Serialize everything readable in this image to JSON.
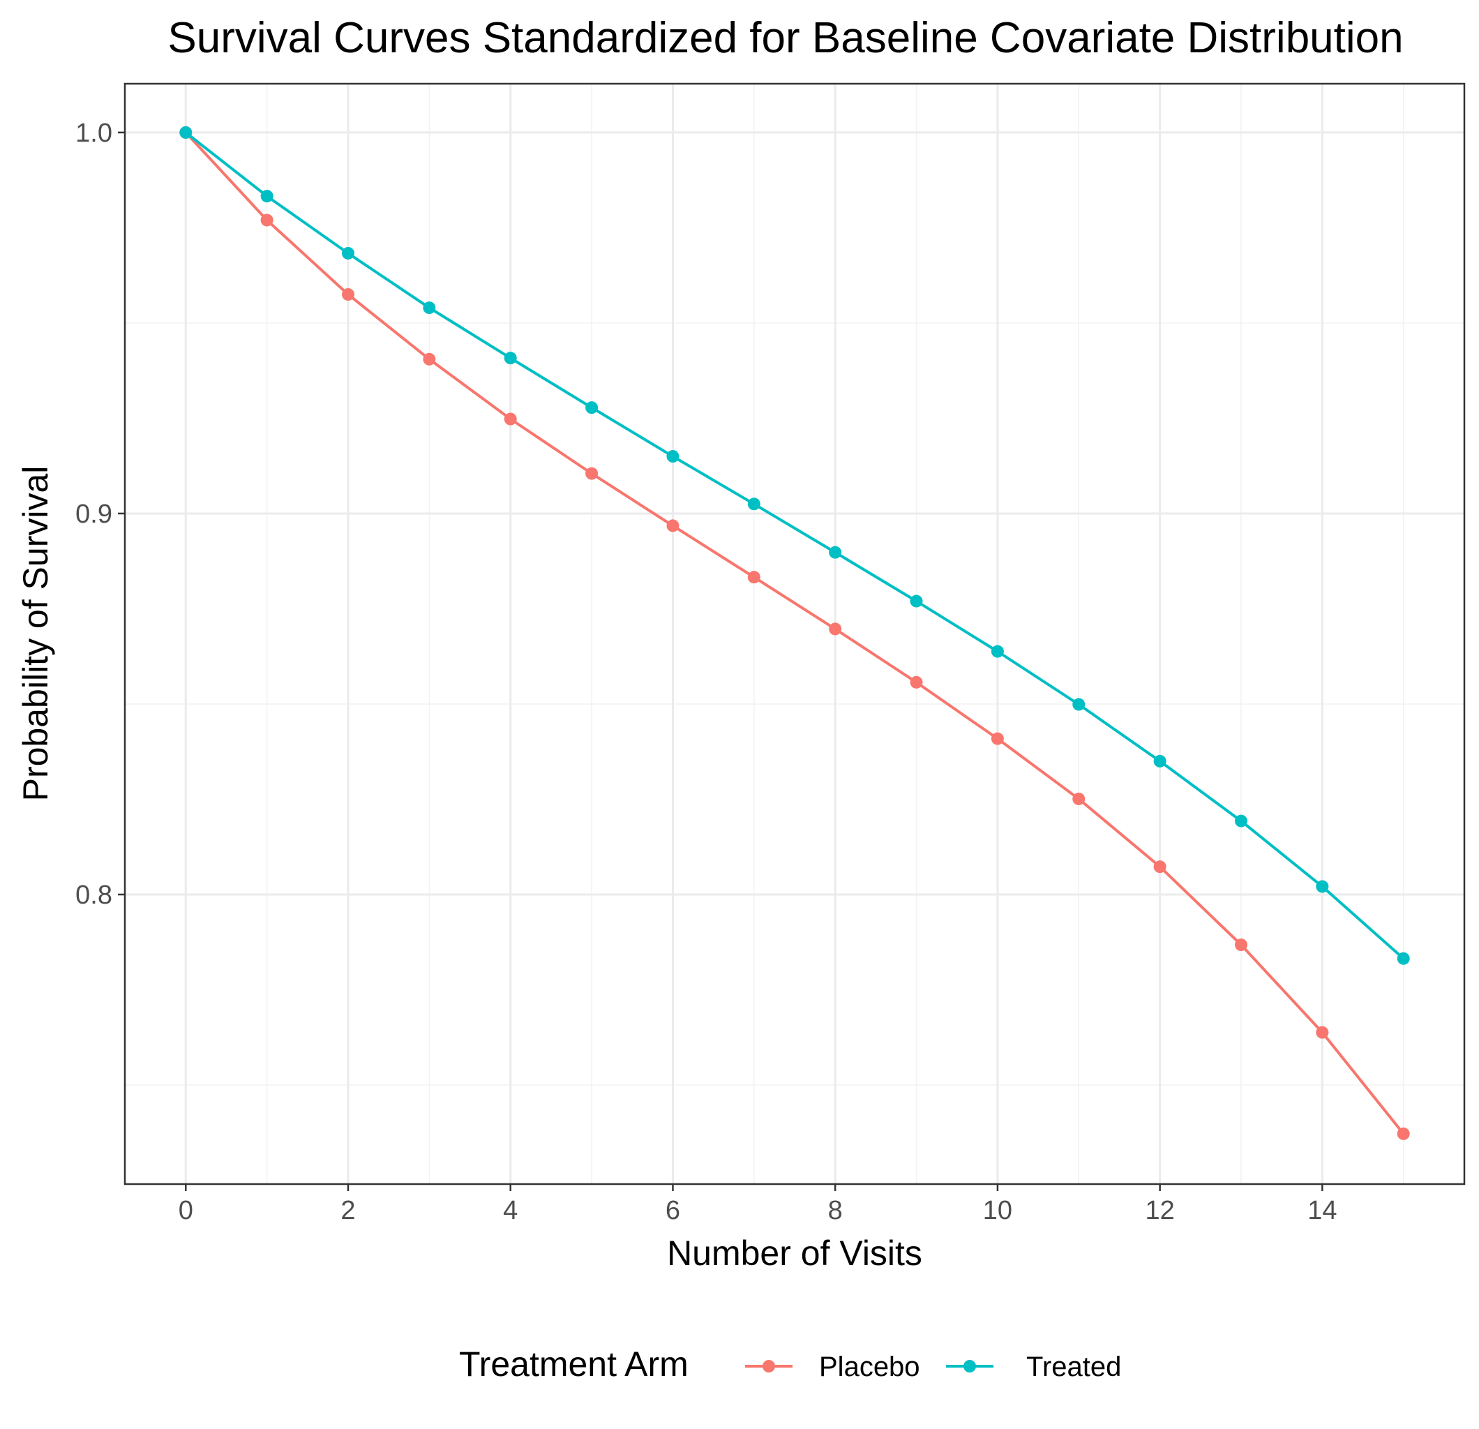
{
  "chart_data": {
    "type": "line",
    "title": "Survival Curves Standardized for Baseline Covariate Distribution",
    "xlabel": "Number of Visits",
    "ylabel": "Probability of Survival",
    "x": [
      0,
      1,
      2,
      3,
      4,
      5,
      6,
      7,
      8,
      9,
      10,
      11,
      12,
      13,
      14,
      15
    ],
    "xlim": [
      -0.75,
      15.75
    ],
    "ylim": [
      0.724,
      1.0128
    ],
    "x_ticks": [
      0,
      2,
      4,
      6,
      8,
      10,
      12,
      14
    ],
    "x_tick_labels": [
      "0",
      "2",
      "4",
      "6",
      "8",
      "10",
      "12",
      "14"
    ],
    "y_ticks": [
      0.8,
      0.9,
      1.0
    ],
    "y_tick_labels": [
      "0.8",
      "0.9",
      "1.0"
    ],
    "y_minor_ticks": [
      0.75,
      0.85,
      0.95
    ],
    "grid": true,
    "legend": {
      "title": "Treatment Arm",
      "position": "bottom"
    },
    "series": [
      {
        "name": "Placebo",
        "color": "#F8766D",
        "values": [
          1.0,
          0.977,
          0.9575,
          0.9405,
          0.9248,
          0.9105,
          0.8968,
          0.8833,
          0.8697,
          0.8557,
          0.8409,
          0.8251,
          0.8073,
          0.7868,
          0.7638,
          0.7372
        ]
      },
      {
        "name": "Treated",
        "color": "#00BFC4",
        "values": [
          1.0,
          0.9833,
          0.9683,
          0.954,
          0.9408,
          0.9278,
          0.915,
          0.9025,
          0.8898,
          0.877,
          0.8638,
          0.8499,
          0.835,
          0.8193,
          0.8021,
          0.7832
        ]
      }
    ]
  }
}
